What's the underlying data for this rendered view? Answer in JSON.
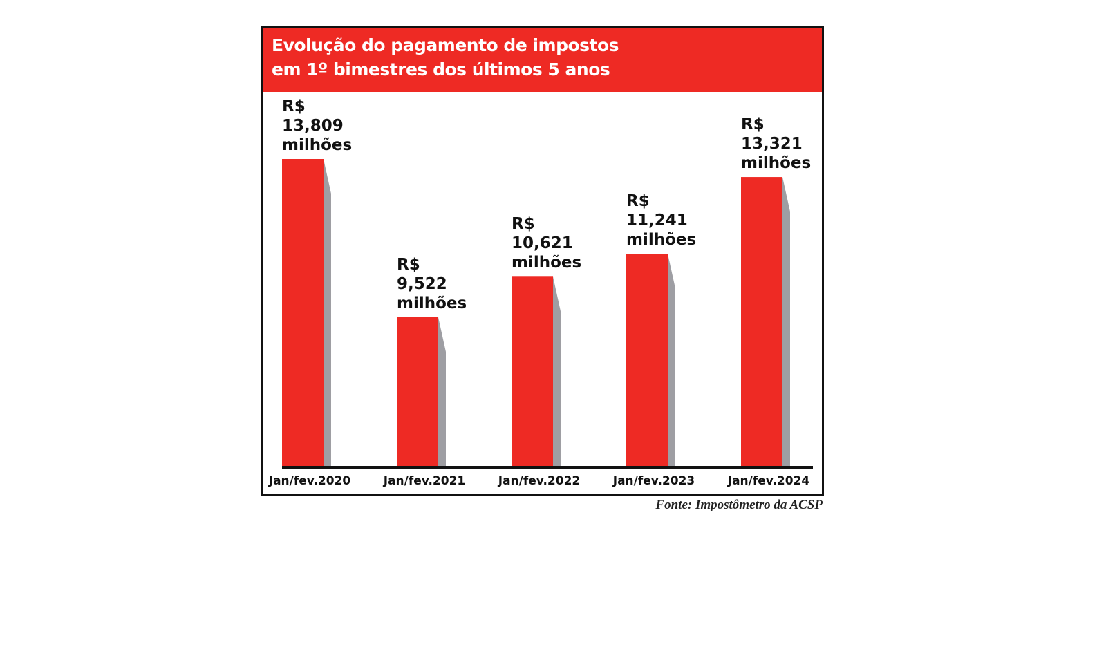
{
  "chart_data": {
    "type": "bar",
    "title": "Evolução do pagamento de impostos em 1º bimestres dos últimos 5 anos",
    "categories": [
      "Jan/fev.2020",
      "Jan/fev.2021",
      "Jan/fev.2022",
      "Jan/fev.2023",
      "Jan/fev.2024"
    ],
    "values": [
      13809,
      9522,
      10621,
      11241,
      13321
    ],
    "value_labels": [
      "R$ 13,809 milhões",
      "R$ 9,522 milhões",
      "R$ 10,621 milhões",
      "R$ 11,241 milhões",
      "R$ 13,321 milhões"
    ],
    "color": "#ee2a24",
    "source": "Fonte: Impostômetro da ACSP"
  }
}
